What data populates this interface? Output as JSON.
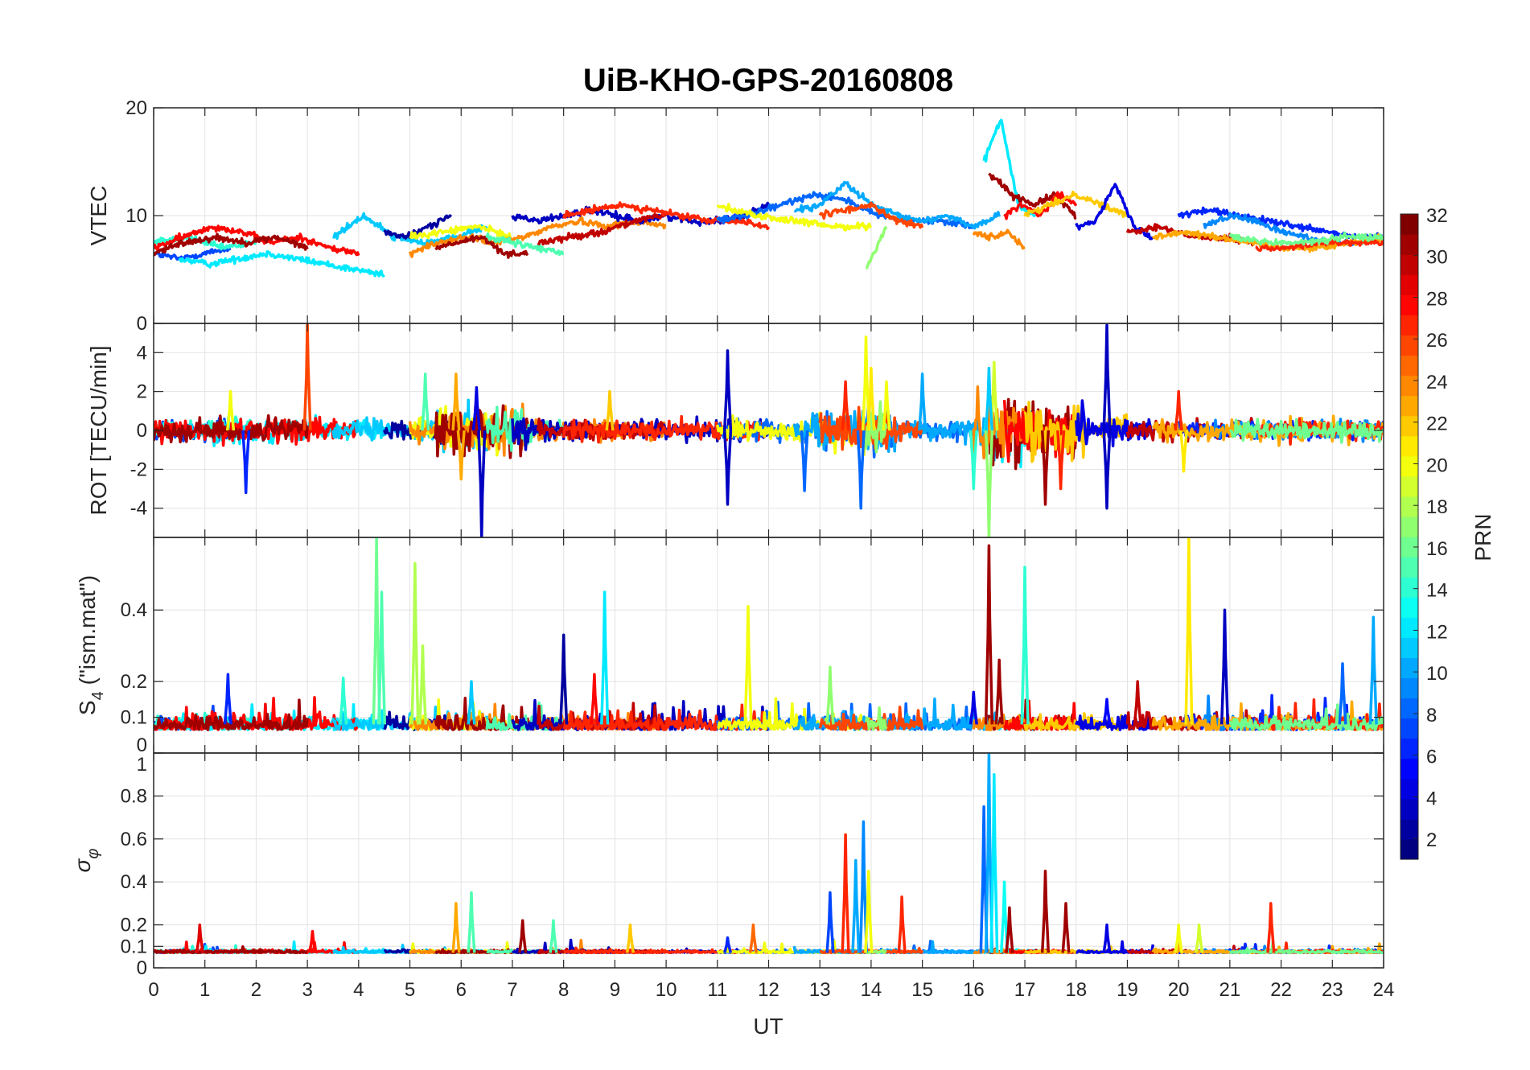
{
  "chart_data": {
    "type": "line",
    "title": "UiB-KHO-GPS-20160808",
    "xlabel": "UT",
    "xlim": [
      0,
      24
    ],
    "xticks": [
      0,
      1,
      2,
      3,
      4,
      5,
      6,
      7,
      8,
      9,
      10,
      11,
      12,
      13,
      14,
      15,
      16,
      17,
      18,
      19,
      20,
      21,
      22,
      23,
      24
    ],
    "grid": true,
    "colorbar": {
      "label": "PRN",
      "range": [
        1,
        32
      ],
      "levels": 32,
      "colormap": "jet",
      "ticks": [
        2,
        4,
        6,
        8,
        10,
        12,
        14,
        16,
        18,
        20,
        22,
        24,
        26,
        28,
        30,
        32
      ],
      "placement": "right"
    },
    "panels": [
      {
        "id": "vtec",
        "ylabel": "VTEC",
        "ylim": [
          0,
          20
        ],
        "yticks": [
          0,
          10,
          20
        ],
        "ytick_labels": [
          "0",
          "10",
          "20"
        ]
      },
      {
        "id": "rot",
        "ylabel": "ROT [TECU/min]",
        "ylim": [
          -5.5,
          5.5
        ],
        "yticks": [
          -4,
          -2,
          0,
          2,
          4
        ],
        "ytick_labels": [
          "-4",
          "-2",
          "0",
          "2",
          "4"
        ],
        "activity": [
          [
            5.5,
            7.3,
            2.2
          ],
          [
            12.8,
            14.5,
            2.0
          ],
          [
            16.0,
            18.2,
            3.0
          ],
          [
            1.0,
            3.2,
            1.2
          ],
          [
            11,
            11.5,
            1.2
          ],
          [
            18.5,
            19,
            1.5
          ]
        ],
        "spikes": [
          [
            3.0,
            5.5,
            26
          ],
          [
            1.8,
            -3.2,
            6
          ],
          [
            6.4,
            -5.5,
            3
          ],
          [
            6.3,
            2.2,
            4
          ],
          [
            11.2,
            4.1,
            3
          ],
          [
            11.2,
            -3.8,
            3
          ],
          [
            13.9,
            4.8,
            20
          ],
          [
            14.0,
            3.2,
            21
          ],
          [
            13.8,
            -4.0,
            8
          ],
          [
            16.3,
            -5.5,
            17
          ],
          [
            16.4,
            3.5,
            19
          ],
          [
            16.3,
            3.2,
            11
          ],
          [
            18.6,
            5.4,
            3
          ],
          [
            18.6,
            -4.0,
            3
          ],
          [
            17.4,
            -3.8,
            31
          ],
          [
            20.1,
            -2.1,
            21
          ],
          [
            20.0,
            2.0,
            27
          ],
          [
            5.3,
            2.9,
            15
          ],
          [
            5.9,
            2.9,
            23
          ],
          [
            6.0,
            -2.5,
            23
          ],
          [
            12.7,
            -3.1,
            8
          ],
          [
            15.0,
            2.9,
            10
          ],
          [
            14.3,
            2.5,
            20
          ],
          [
            17.7,
            -3.0,
            27
          ],
          [
            16.0,
            -3.0,
            14
          ],
          [
            13.5,
            2.5,
            27
          ],
          [
            8.9,
            2.0,
            22
          ],
          [
            1.5,
            2.0,
            20
          ]
        ]
      },
      {
        "id": "s4",
        "ylabel": "S4 (\"ism.mat\")",
        "ylabel_main": "S",
        "ylabel_sub": "4",
        "ylabel_rest": " (\"ism.mat\")",
        "ylim": [
          0,
          0.603
        ],
        "yticks": [
          0,
          0.1,
          0.2,
          0.4
        ],
        "ytick_labels": [
          "0",
          "0.1",
          "0.2",
          "0.4"
        ],
        "spikes": [
          [
            4.35,
            0.6,
            16
          ],
          [
            4.45,
            0.45,
            15
          ],
          [
            5.1,
            0.53,
            18
          ],
          [
            5.25,
            0.3,
            18
          ],
          [
            8.0,
            0.33,
            2
          ],
          [
            8.8,
            0.45,
            12
          ],
          [
            11.6,
            0.41,
            20
          ],
          [
            13.2,
            0.24,
            17
          ],
          [
            16.3,
            0.58,
            31
          ],
          [
            16.5,
            0.26,
            31
          ],
          [
            17.0,
            0.52,
            14
          ],
          [
            18.6,
            0.15,
            5
          ],
          [
            19.2,
            0.2,
            30
          ],
          [
            20.2,
            0.6,
            21
          ],
          [
            20.9,
            0.4,
            3
          ],
          [
            23.8,
            0.38,
            10
          ],
          [
            1.45,
            0.22,
            6
          ],
          [
            3.7,
            0.21,
            14
          ],
          [
            8.6,
            0.22,
            28
          ],
          [
            23.2,
            0.25,
            8
          ],
          [
            6.2,
            0.2,
            11
          ],
          [
            16.0,
            0.17,
            4
          ]
        ]
      },
      {
        "id": "sigma",
        "ylabel": "σφ",
        "ylabel_main": "σ",
        "ylabel_sub": "φ",
        "ylim": [
          0,
          1
        ],
        "yticks": [
          0,
          0.1,
          0.2,
          0.4,
          0.6,
          0.8,
          1
        ],
        "ytick_labels": [
          "0",
          "0.1",
          "0.2",
          "0.4",
          "0.6",
          "0.8",
          "1"
        ],
        "spikes": [
          [
            13.2,
            0.35,
            7
          ],
          [
            13.5,
            0.62,
            27
          ],
          [
            13.7,
            0.5,
            10
          ],
          [
            13.85,
            0.68,
            9
          ],
          [
            13.95,
            0.45,
            20
          ],
          [
            14.6,
            0.33,
            27
          ],
          [
            16.2,
            0.75,
            8
          ],
          [
            16.3,
            1.0,
            10
          ],
          [
            16.4,
            0.9,
            12
          ],
          [
            16.6,
            0.4,
            13
          ],
          [
            16.7,
            0.28,
            31
          ],
          [
            17.4,
            0.45,
            31
          ],
          [
            17.8,
            0.3,
            31
          ],
          [
            18.6,
            0.2,
            4
          ],
          [
            21.8,
            0.3,
            27
          ],
          [
            6.2,
            0.35,
            15
          ],
          [
            5.9,
            0.3,
            23
          ],
          [
            7.2,
            0.22,
            31
          ],
          [
            7.8,
            0.22,
            15
          ],
          [
            0.9,
            0.2,
            29
          ],
          [
            9.3,
            0.2,
            22
          ],
          [
            11.7,
            0.2,
            25
          ],
          [
            20.0,
            0.2,
            20
          ],
          [
            20.4,
            0.2,
            19
          ],
          [
            3.1,
            0.17,
            28
          ],
          [
            11.2,
            0.14,
            6
          ]
        ]
      }
    ],
    "passes": [
      {
        "prn": 7,
        "t": [
          0,
          1.5
        ],
        "vtec": [
          6.5,
          6,
          6.5,
          7
        ]
      },
      {
        "prn": 14,
        "t": [
          0,
          2
        ],
        "vtec": [
          7.5,
          8,
          7,
          7.5
        ]
      },
      {
        "prn": 12,
        "t": [
          0.5,
          4.5
        ],
        "vtec": [
          6,
          5.5,
          6,
          6.5,
          6,
          5.5,
          5,
          4.5
        ]
      },
      {
        "prn": 28,
        "t": [
          0,
          4
        ],
        "vtec": [
          7,
          8,
          9,
          8.5,
          7.5,
          8,
          7,
          6.5
        ]
      },
      {
        "prn": 31,
        "t": [
          0,
          3
        ],
        "vtec": [
          6.5,
          7.5,
          8,
          7.5,
          8,
          7
        ]
      },
      {
        "prn": 11,
        "t": [
          3.5,
          6.5
        ],
        "vtec": [
          8,
          10,
          8,
          7.5,
          8,
          9
        ]
      },
      {
        "prn": 2,
        "t": [
          4.5,
          5.8
        ],
        "vtec": [
          8.5,
          8,
          9,
          10
        ]
      },
      {
        "prn": 20,
        "t": [
          5,
          7
        ],
        "vtec": [
          8,
          8.5,
          9,
          8
        ]
      },
      {
        "prn": 24,
        "t": [
          5,
          10
        ],
        "vtec": [
          6.5,
          7.5,
          8,
          7.5,
          8,
          9,
          9.5,
          9,
          9.5,
          9
        ]
      },
      {
        "prn": 31,
        "t": [
          5.5,
          7.3
        ],
        "vtec": [
          7,
          7.5,
          8,
          6.5,
          6.5
        ]
      },
      {
        "prn": 15,
        "t": [
          6.5,
          8
        ],
        "vtec": [
          8,
          7.5,
          7,
          6.5
        ]
      },
      {
        "prn": 3,
        "t": [
          7,
          12
        ],
        "vtec": [
          10,
          9.5,
          10,
          10.5,
          10,
          9.5,
          10,
          9.5,
          9.5,
          10,
          11
        ]
      },
      {
        "prn": 30,
        "t": [
          7.5,
          10
        ],
        "vtec": [
          7.5,
          8,
          8.5,
          9.5,
          10
        ]
      },
      {
        "prn": 27,
        "t": [
          8,
          12
        ],
        "vtec": [
          10,
          10.5,
          11,
          10.5,
          10,
          9.5,
          9.5,
          9
        ]
      },
      {
        "prn": 8,
        "t": [
          11,
          16
        ],
        "vtec": [
          9.5,
          10,
          11,
          12,
          11.5,
          10,
          9.5,
          9.5,
          9
        ]
      },
      {
        "prn": 20,
        "t": [
          11,
          14
        ],
        "vtec": [
          11,
          10,
          9.5,
          9,
          9
        ]
      },
      {
        "prn": 10,
        "t": [
          12.5,
          16.5
        ],
        "vtec": [
          10.5,
          11,
          13,
          11,
          10,
          9.5,
          10,
          9,
          10
        ]
      },
      {
        "prn": 26,
        "t": [
          13,
          15
        ],
        "vtec": [
          10,
          10.5,
          11,
          9.5,
          9
        ]
      },
      {
        "prn": 17,
        "t": [
          13.9,
          14.3
        ],
        "vtec": [
          5,
          7,
          9
        ]
      },
      {
        "prn": 12,
        "t": [
          16.2,
          17.2
        ],
        "vtec": [
          15,
          19,
          11,
          10
        ]
      },
      {
        "prn": 31,
        "t": [
          16.3,
          18
        ],
        "vtec": [
          14,
          12,
          11,
          12,
          10
        ]
      },
      {
        "prn": 24,
        "t": [
          16,
          17
        ],
        "vtec": [
          8.5,
          8,
          8.5,
          7
        ]
      },
      {
        "prn": 28,
        "t": [
          16.6,
          18
        ],
        "vtec": [
          10,
          11,
          10,
          12,
          11
        ]
      },
      {
        "prn": 22,
        "t": [
          17,
          19
        ],
        "vtec": [
          10,
          11,
          12,
          11,
          10
        ]
      },
      {
        "prn": 4,
        "t": [
          18,
          19.5
        ],
        "vtec": [
          9,
          9.5,
          13,
          9,
          8
        ]
      },
      {
        "prn": 30,
        "t": [
          19,
          21.5
        ],
        "vtec": [
          8.5,
          9,
          8,
          8,
          7.5
        ]
      },
      {
        "prn": 6,
        "t": [
          20,
          24
        ],
        "vtec": [
          10,
          10.5,
          10,
          9.5,
          9,
          8.5,
          8,
          8
        ]
      },
      {
        "prn": 9,
        "t": [
          20.5,
          24
        ],
        "vtec": [
          9,
          10,
          9.5,
          8.5,
          8,
          7.5,
          7.5,
          8
        ]
      },
      {
        "prn": 23,
        "t": [
          19.5,
          24
        ],
        "vtec": [
          8,
          8.5,
          8,
          7.5,
          7,
          7,
          7.5,
          8
        ]
      },
      {
        "prn": 27,
        "t": [
          21.5,
          24
        ],
        "vtec": [
          7,
          7,
          7.5,
          7.5,
          7.5
        ]
      },
      {
        "prn": 16,
        "t": [
          21,
          24
        ],
        "vtec": [
          8,
          7.5,
          7.5,
          8,
          8
        ]
      }
    ]
  }
}
